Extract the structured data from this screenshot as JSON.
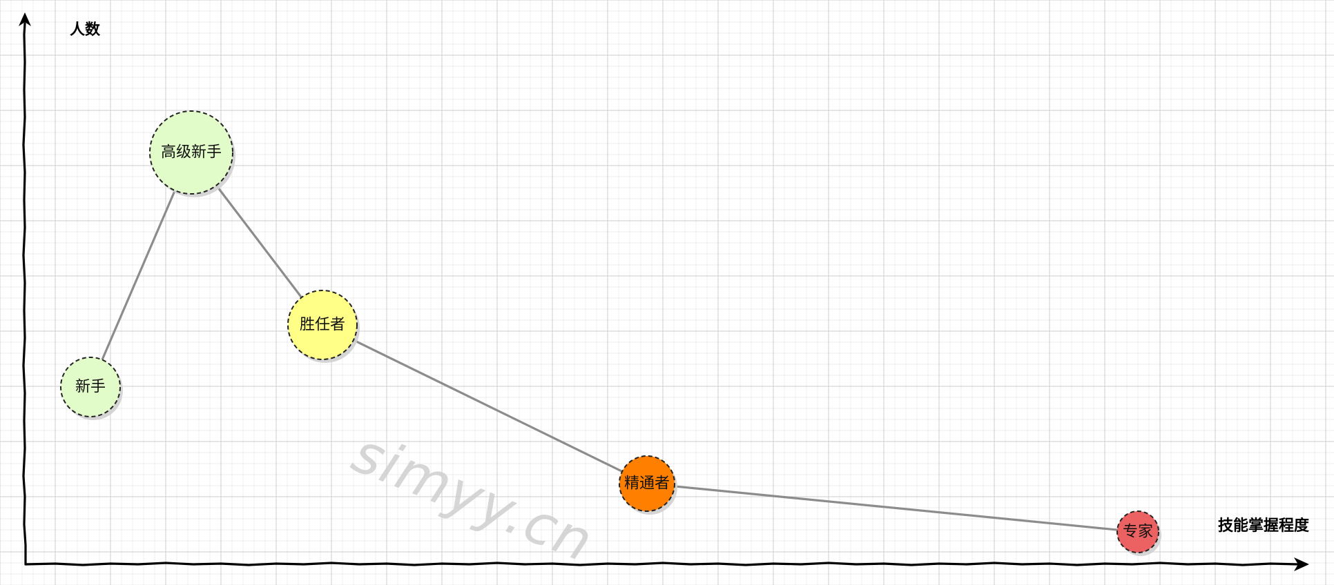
{
  "y_axis_label": "人数",
  "x_axis_label": "技能掌握程度",
  "watermark": "simyy.cn",
  "nodes": [
    {
      "id": "novice",
      "label": "新手",
      "color": "#e2fcc9"
    },
    {
      "id": "advanced-beginner",
      "label": "高级新手",
      "color": "#e2fcc9"
    },
    {
      "id": "competent",
      "label": "胜任者",
      "color": "#ffff88"
    },
    {
      "id": "proficient",
      "label": "精通者",
      "color": "#ff7f00"
    },
    {
      "id": "expert",
      "label": "专家",
      "color": "#ec6262"
    }
  ],
  "edges": [
    [
      "novice",
      "advanced-beginner"
    ],
    [
      "advanced-beginner",
      "competent"
    ],
    [
      "competent",
      "proficient"
    ],
    [
      "proficient",
      "expert"
    ]
  ],
  "colors": {
    "edge": "#8c8c8c",
    "axis": "#000000",
    "grid": "#d6d6d6"
  }
}
